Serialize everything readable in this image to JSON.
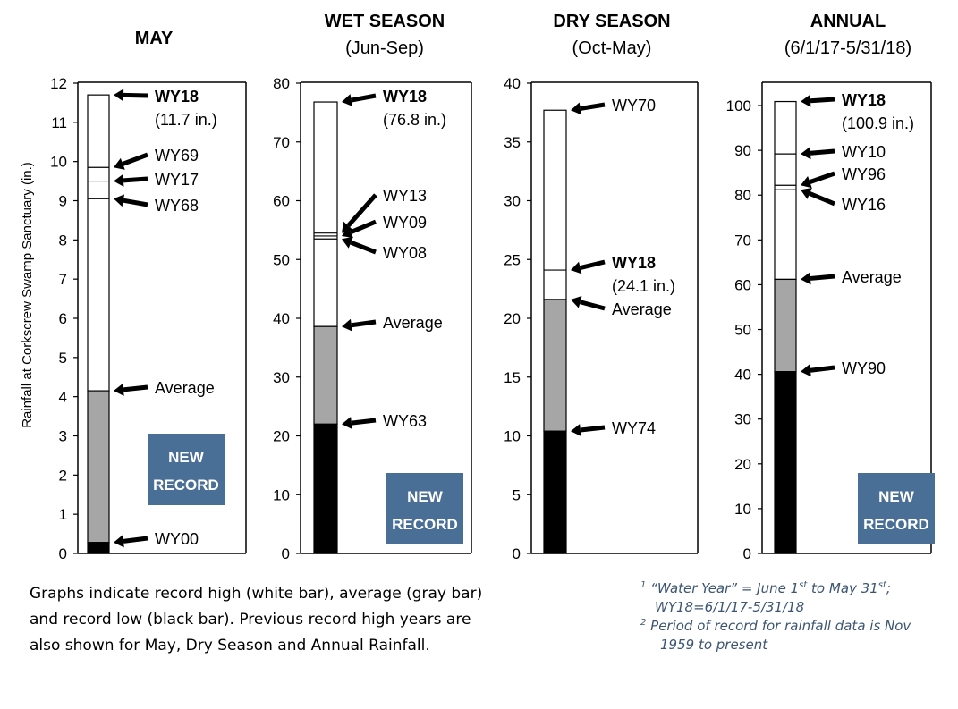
{
  "y_axis_label": "Rainfall at Corkscrew Swamp Sanctuary (in.)",
  "record_badge": [
    "NEW",
    "RECORD"
  ],
  "colors": {
    "record_high": "#ffffff",
    "average": "#a6a6a6",
    "record_low": "#000000",
    "badge": "#4a6f96",
    "footnote": "#3b5573"
  },
  "chart_data": [
    {
      "type": "bar",
      "title": "MAY",
      "subtitle": "",
      "ylim": [
        0,
        12
      ],
      "yticks": [
        0,
        1,
        2,
        3,
        4,
        5,
        6,
        7,
        8,
        9,
        10,
        11,
        12
      ],
      "segments": {
        "record_high": 11.7,
        "average": 4.15,
        "record_low": 0.28
      },
      "record_high_lines": [
        9.85,
        9.5,
        9.05
      ],
      "annotations": [
        {
          "value": 11.7,
          "label": "WY18",
          "sublabel": "(11.7 in.)",
          "bold": true
        },
        {
          "value": 9.85,
          "label": "WY69",
          "bold": false
        },
        {
          "value": 9.5,
          "label": "WY17",
          "bold": false
        },
        {
          "value": 9.05,
          "label": "WY68",
          "bold": false
        },
        {
          "value": 4.15,
          "label": "Average",
          "bold": false
        },
        {
          "value": 0.28,
          "label": "WY00",
          "bold": false
        }
      ]
    },
    {
      "type": "bar",
      "title": "WET SEASON",
      "subtitle": "(Jun-Sep)",
      "ylim": [
        0,
        80
      ],
      "yticks": [
        0,
        10,
        20,
        30,
        40,
        50,
        60,
        70,
        80
      ],
      "segments": {
        "record_high": 76.8,
        "average": 38.6,
        "record_low": 22
      },
      "record_high_lines": [
        54.5,
        54.0,
        53.5
      ],
      "annotations": [
        {
          "value": 76.8,
          "label": "WY18",
          "sublabel": "(76.8 in.)",
          "bold": true
        },
        {
          "value": 54.5,
          "label": "WY13",
          "bold": false
        },
        {
          "value": 54.0,
          "label": "WY09",
          "bold": false
        },
        {
          "value": 53.5,
          "label": "WY08",
          "bold": false
        },
        {
          "value": 38.6,
          "label": "Average",
          "bold": false
        },
        {
          "value": 22,
          "label": "WY63",
          "bold": false
        }
      ]
    },
    {
      "type": "bar",
      "title": "DRY SEASON",
      "subtitle": "(Oct-May)",
      "ylim": [
        0,
        40
      ],
      "yticks": [
        0,
        5,
        10,
        15,
        20,
        25,
        30,
        35,
        40
      ],
      "segments": {
        "record_high": 37.7,
        "average": 21.6,
        "record_low": 10.4
      },
      "record_high_lines": [
        24.1
      ],
      "annotations": [
        {
          "value": 37.7,
          "label": "WY70",
          "bold": false
        },
        {
          "value": 24.1,
          "label": "WY18",
          "sublabel": "(24.1 in.)",
          "bold": true
        },
        {
          "value": 21.6,
          "label": "Average",
          "bold": false
        },
        {
          "value": 10.4,
          "label": "WY74",
          "bold": false
        }
      ]
    },
    {
      "type": "bar",
      "title": "ANNUAL",
      "subtitle": "(6/1/17-5/31/18)",
      "ylim": [
        0,
        105
      ],
      "yticks": [
        0,
        10,
        20,
        30,
        40,
        50,
        60,
        70,
        80,
        90,
        100
      ],
      "segments": {
        "record_high": 100.9,
        "average": 61.2,
        "record_low": 40.6
      },
      "record_high_lines": [
        89.2,
        82.2,
        81.2
      ],
      "annotations": [
        {
          "value": 100.9,
          "label": "WY18",
          "sublabel": "(100.9 in.)",
          "bold": true
        },
        {
          "value": 89.2,
          "label": "WY10",
          "bold": false
        },
        {
          "value": 82.2,
          "label": "WY96",
          "bold": false
        },
        {
          "value": 81.2,
          "label": "WY16",
          "bold": false
        },
        {
          "value": 61.2,
          "label": "Average",
          "bold": false
        },
        {
          "value": 40.6,
          "label": "WY90",
          "bold": false
        }
      ]
    }
  ],
  "caption_lines": [
    "Graphs indicate record high (white bar), average (gray bar)",
    "and record low (black bar). Previous record high years are",
    "also shown for May, Dry Season and Annual Rainfall."
  ],
  "footnotes": {
    "fn1_marker": "1",
    "fn1_a": "“Water Year” = June 1",
    "fn1_sup1": "st",
    "fn1_b": " to May 31",
    "fn1_sup2": "st",
    "fn1_c": ";",
    "fn1_line2": "WY18=6/1/17-5/31/18",
    "fn2_marker": "2",
    "fn2_line1": " Period of record for rainfall data is Nov",
    "fn2_line2": "1959 to present"
  }
}
